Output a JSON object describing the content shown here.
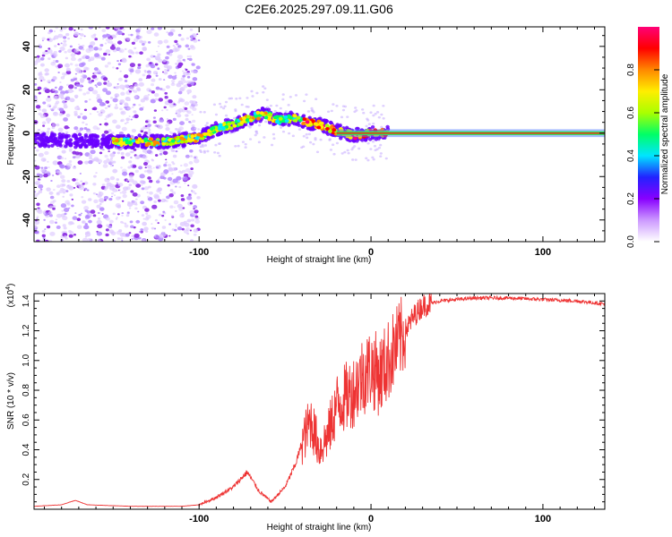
{
  "title": "C2E6.2025.297.09.11.G06",
  "chart_data": [
    {
      "type": "heatmap",
      "xlabel": "Height of straight line (km)",
      "ylabel": "Frequency (Hz)",
      "xlim": [
        -196,
        136
      ],
      "ylim": [
        -50,
        49
      ],
      "xticks": [
        -100,
        0,
        100
      ],
      "xtick_labels": [
        "-100",
        "0",
        "100"
      ],
      "yticks": [
        -40,
        -20,
        0,
        20,
        40
      ],
      "ytick_labels": [
        "-40",
        "-20",
        "0",
        "20",
        "40"
      ],
      "ridge": [
        {
          "x": -196,
          "y": -3
        },
        {
          "x": -150,
          "y": -4
        },
        {
          "x": -120,
          "y": -4
        },
        {
          "x": -100,
          "y": -2
        },
        {
          "x": -90,
          "y": 2
        },
        {
          "x": -80,
          "y": 4
        },
        {
          "x": -70,
          "y": 7
        },
        {
          "x": -62,
          "y": 9
        },
        {
          "x": -55,
          "y": 6
        },
        {
          "x": -45,
          "y": 7
        },
        {
          "x": -38,
          "y": 5
        },
        {
          "x": -30,
          "y": 4
        },
        {
          "x": -20,
          "y": 1
        },
        {
          "x": -10,
          "y": -1
        },
        {
          "x": 0,
          "y": 0
        },
        {
          "x": 50,
          "y": 0
        },
        {
          "x": 136,
          "y": 0
        }
      ],
      "colorbar": {
        "label": "Normalized spectral amplitude",
        "range": [
          0,
          1
        ],
        "ticks": [
          0.0,
          0.2,
          0.4,
          0.6,
          0.8
        ],
        "tick_labels": [
          "0.0",
          "0.2",
          "0.4",
          "0.6",
          "0.8"
        ],
        "colors": [
          "#ffffff",
          "#cc99ff",
          "#8800ff",
          "#2222ff",
          "#00e5ff",
          "#00ff66",
          "#aaff00",
          "#ffee00",
          "#ff8800",
          "#ff0000",
          "#ff0077"
        ]
      }
    },
    {
      "type": "line",
      "xlabel": "Height of straight line (km)",
      "ylabel": "SNR (10 * v/v)",
      "scale_label": "(x10",
      "scale_exp": "4",
      "scale_close": ")",
      "xlim": [
        -196,
        136
      ],
      "ylim": [
        0,
        1.45
      ],
      "xticks": [
        -100,
        0,
        100
      ],
      "xtick_labels": [
        "-100",
        "0",
        "100"
      ],
      "yticks": [
        0.2,
        0.4,
        0.6,
        0.8,
        1.0,
        1.2,
        1.4
      ],
      "ytick_labels": [
        "0.2",
        "0.4",
        "0.6",
        "0.8",
        "1.0",
        "1.2",
        "1.4"
      ],
      "line_color": "#ee3333",
      "series": [
        {
          "name": "SNR",
          "points": [
            {
              "x": -196,
              "y": 0.02
            },
            {
              "x": -180,
              "y": 0.03
            },
            {
              "x": -172,
              "y": 0.06
            },
            {
              "x": -165,
              "y": 0.03
            },
            {
              "x": -140,
              "y": 0.02
            },
            {
              "x": -110,
              "y": 0.02
            },
            {
              "x": -100,
              "y": 0.03
            },
            {
              "x": -90,
              "y": 0.08
            },
            {
              "x": -80,
              "y": 0.15
            },
            {
              "x": -72,
              "y": 0.25
            },
            {
              "x": -65,
              "y": 0.12
            },
            {
              "x": -58,
              "y": 0.05
            },
            {
              "x": -50,
              "y": 0.15
            },
            {
              "x": -44,
              "y": 0.3
            },
            {
              "x": -40,
              "y": 0.45
            },
            {
              "x": -35,
              "y": 0.6
            },
            {
              "x": -30,
              "y": 0.4
            },
            {
              "x": -25,
              "y": 0.5
            },
            {
              "x": -20,
              "y": 0.7
            },
            {
              "x": -15,
              "y": 0.75
            },
            {
              "x": -10,
              "y": 0.8
            },
            {
              "x": -5,
              "y": 0.9
            },
            {
              "x": 0,
              "y": 0.95
            },
            {
              "x": 5,
              "y": 0.9
            },
            {
              "x": 10,
              "y": 1.0
            },
            {
              "x": 15,
              "y": 1.1
            },
            {
              "x": 20,
              "y": 1.2
            },
            {
              "x": 25,
              "y": 1.3
            },
            {
              "x": 30,
              "y": 1.37
            },
            {
              "x": 40,
              "y": 1.4
            },
            {
              "x": 60,
              "y": 1.42
            },
            {
              "x": 80,
              "y": 1.42
            },
            {
              "x": 100,
              "y": 1.41
            },
            {
              "x": 120,
              "y": 1.4
            },
            {
              "x": 136,
              "y": 1.38
            }
          ]
        }
      ]
    }
  ]
}
